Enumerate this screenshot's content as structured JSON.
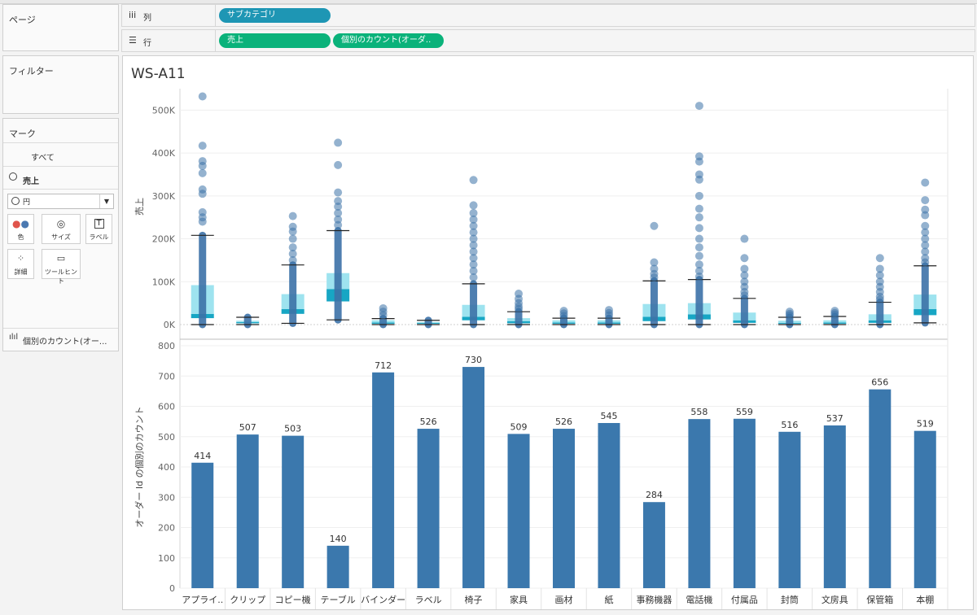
{
  "shelves": {
    "pages_label": "ページ",
    "columns_label": "列",
    "rows_label": "行",
    "columns_pill": "サブカテゴリ",
    "rows_pills": [
      "売上",
      "個別のカウント(オーダ.."
    ]
  },
  "filters_label": "フィルター",
  "marks": {
    "title": "マーク",
    "all": "すべて",
    "measure": "売上",
    "mark_type": "円",
    "buttons": [
      "色",
      "サイズ",
      "ラベル",
      "詳細",
      "ツールヒント"
    ],
    "count_item": "個別のカウント(オー..."
  },
  "view_title": "WS-A11",
  "colors": {
    "bar": "#3b78ad",
    "dot": "#3c72a8",
    "box_light": "#9ee3ef",
    "box_dark": "#17a6c4"
  },
  "chart_data": [
    {
      "type": "scatter",
      "ylabel": "売上",
      "ylim": [
        0,
        550000
      ],
      "yticks": [
        "0K",
        "100K",
        "200K",
        "300K",
        "400K",
        "500K"
      ],
      "categories": [
        "アプライ..",
        "クリップ",
        "コピー機",
        "テーブル",
        "バインダー",
        "ラベル",
        "椅子",
        "家具",
        "画材",
        "紙",
        "事務機器",
        "電話機",
        "付属品",
        "封筒",
        "文房具",
        "保管箱",
        "本棚"
      ],
      "boxes": [
        {
          "q1": 15000,
          "median": 25000,
          "q3": 92000,
          "whisker_low": 0,
          "whisker_high": 208000,
          "outliers": [
            532000,
            417000,
            381000,
            370000,
            353000,
            315000,
            305000,
            262000,
            250000,
            240000
          ]
        },
        {
          "q1": 3000,
          "median": 6000,
          "q3": 9000,
          "whisker_low": 0,
          "whisker_high": 17000,
          "outliers": []
        },
        {
          "q1": 25000,
          "median": 36000,
          "q3": 71000,
          "whisker_low": 3000,
          "whisker_high": 139000,
          "outliers": [
            253000,
            228000,
            217000,
            200000,
            180000,
            165000,
            150000
          ]
        },
        {
          "q1": 54000,
          "median": 83000,
          "q3": 120000,
          "whisker_low": 11000,
          "whisker_high": 219000,
          "outliers": [
            424000,
            372000,
            308000,
            288000,
            275000,
            260000,
            245000,
            232000
          ]
        },
        {
          "q1": 2000,
          "median": 5000,
          "q3": 10000,
          "whisker_low": 0,
          "whisker_high": 14000,
          "outliers": [
            38000,
            30000,
            22000
          ]
        },
        {
          "q1": 2000,
          "median": 4000,
          "q3": 6000,
          "whisker_low": 0,
          "whisker_high": 10000,
          "outliers": []
        },
        {
          "q1": 10000,
          "median": 18000,
          "q3": 46000,
          "whisker_low": 0,
          "whisker_high": 95000,
          "outliers": [
            337000,
            278000,
            260000,
            245000,
            230000,
            215000,
            200000,
            185000,
            170000,
            155000,
            140000,
            125000,
            110000
          ]
        },
        {
          "q1": 3000,
          "median": 8000,
          "q3": 15000,
          "whisker_low": 0,
          "whisker_high": 30000,
          "outliers": [
            72000,
            60000,
            50000,
            42000,
            36000
          ]
        },
        {
          "q1": 2000,
          "median": 5000,
          "q3": 10000,
          "whisker_low": 0,
          "whisker_high": 15000,
          "outliers": [
            32000,
            26000,
            20000
          ]
        },
        {
          "q1": 2000,
          "median": 5000,
          "q3": 10000,
          "whisker_low": 0,
          "whisker_high": 15000,
          "outliers": [
            34000,
            27000,
            21000
          ]
        },
        {
          "q1": 8000,
          "median": 18000,
          "q3": 48000,
          "whisker_low": 0,
          "whisker_high": 102000,
          "outliers": [
            230000,
            145000,
            130000,
            118000,
            110000
          ]
        },
        {
          "q1": 12000,
          "median": 24000,
          "q3": 50000,
          "whisker_low": 0,
          "whisker_high": 105000,
          "outliers": [
            510000,
            392000,
            380000,
            350000,
            338000,
            300000,
            270000,
            250000,
            225000,
            200000,
            180000,
            160000,
            140000,
            125000,
            112000
          ]
        },
        {
          "q1": 4000,
          "median": 10000,
          "q3": 28000,
          "whisker_low": 0,
          "whisker_high": 61000,
          "outliers": [
            200000,
            155000,
            130000,
            115000,
            100000,
            88000,
            76000,
            68000
          ]
        },
        {
          "q1": 2000,
          "median": 4000,
          "q3": 9000,
          "whisker_low": 0,
          "whisker_high": 17000,
          "outliers": [
            30000,
            25000,
            21000
          ]
        },
        {
          "q1": 2000,
          "median": 5000,
          "q3": 10000,
          "whisker_low": 0,
          "whisker_high": 19000,
          "outliers": [
            32000,
            27000,
            23000
          ]
        },
        {
          "q1": 4000,
          "median": 10000,
          "q3": 24000,
          "whisker_low": 0,
          "whisker_high": 52000,
          "outliers": [
            155000,
            130000,
            115000,
            100000,
            88000,
            76000,
            65000,
            58000
          ]
        },
        {
          "q1": 22000,
          "median": 36000,
          "q3": 70000,
          "whisker_low": 4000,
          "whisker_high": 137000,
          "outliers": [
            331000,
            290000,
            268000,
            255000,
            230000,
            215000,
            200000,
            185000,
            170000,
            155000,
            145000
          ]
        }
      ]
    },
    {
      "type": "bar",
      "ylabel": "オーダー Id の個別のカウント",
      "ylim": [
        0,
        800
      ],
      "yticks": [
        "0",
        "100",
        "200",
        "300",
        "400",
        "500",
        "600",
        "700",
        "800"
      ],
      "categories": [
        "アプライ..",
        "クリップ",
        "コピー機",
        "テーブル",
        "バインダー",
        "ラベル",
        "椅子",
        "家具",
        "画材",
        "紙",
        "事務機器",
        "電話機",
        "付属品",
        "封筒",
        "文房具",
        "保管箱",
        "本棚"
      ],
      "values": [
        414,
        507,
        503,
        140,
        712,
        526,
        730,
        509,
        526,
        545,
        284,
        558,
        559,
        516,
        537,
        656,
        519
      ],
      "value_labels": [
        "414",
        "507",
        "503",
        "140",
        "712",
        "526",
        "730",
        "509",
        "526",
        "545",
        "284",
        "558",
        "559",
        "516",
        "537",
        "656",
        "519"
      ]
    }
  ]
}
